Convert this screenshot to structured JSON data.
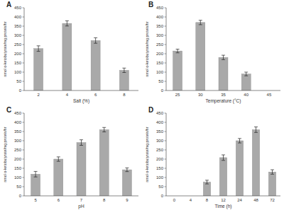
{
  "chart_data": [
    {
      "type": "bar",
      "title": "A",
      "x_label": "Salt (%)",
      "y_label": "nmol α-ketobutyrate/mg protein/hr",
      "categories": [
        "2",
        "4",
        "6",
        "8"
      ],
      "values": [
        228,
        365,
        272,
        110
      ],
      "errors": [
        15,
        14,
        15,
        12
      ],
      "color": "#a9a9a9",
      "ylim": [
        0,
        450
      ],
      "yticks": [
        0,
        50,
        100,
        150,
        200,
        250,
        300,
        350,
        400,
        450
      ],
      "grid": false
    },
    {
      "type": "bar",
      "title": "B",
      "x_label": "Temperature (°C)",
      "y_label": "nmol α-ketobutyrate/mg protein/hr",
      "categories": [
        "25",
        "30",
        "35",
        "40",
        "45"
      ],
      "values": [
        215,
        370,
        180,
        90,
        0
      ],
      "errors": [
        10,
        12,
        12,
        10,
        null
      ],
      "color": "#a9a9a9",
      "ylim": [
        0,
        450
      ],
      "yticks": [
        0,
        50,
        100,
        150,
        200,
        250,
        300,
        350,
        400,
        450
      ],
      "grid": false
    },
    {
      "type": "bar",
      "title": "C",
      "x_label": "pH",
      "y_label": "nmol α-ketobutyrate/mg protein/hr",
      "categories": [
        "5",
        "6",
        "7",
        "8",
        "9"
      ],
      "values": [
        118,
        200,
        290,
        360,
        142
      ],
      "errors": [
        15,
        12,
        15,
        12,
        10
      ],
      "color": "#a9a9a9",
      "ylim": [
        0,
        450
      ],
      "yticks": [
        0,
        50,
        100,
        150,
        200,
        250,
        300,
        350,
        400,
        450
      ],
      "grid": false
    },
    {
      "type": "bar",
      "title": "D",
      "x_label": "Time (h)",
      "y_label": "nmol α-ketobutyrate/mg protein/hr",
      "categories": [
        "0",
        "4",
        "8",
        "12",
        "24",
        "48",
        "72"
      ],
      "values": [
        0,
        0,
        75,
        208,
        300,
        360,
        130
      ],
      "errors": [
        null,
        null,
        10,
        15,
        12,
        15,
        12
      ],
      "color": "#a9a9a9",
      "ylim": [
        0,
        450
      ],
      "yticks": [
        0,
        50,
        100,
        150,
        200,
        250,
        300,
        350,
        400,
        450
      ],
      "grid": false
    }
  ]
}
